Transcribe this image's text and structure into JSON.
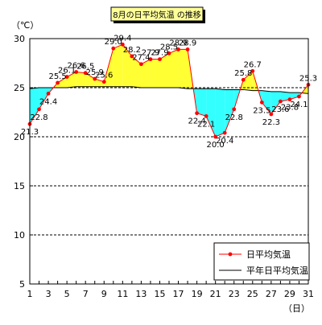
{
  "chart_data": {
    "type": "line",
    "title": "8月の日平均気温 の推移",
    "ylabel_unit": "（℃）",
    "xlabel_unit": "（日）",
    "ylim": [
      5,
      30
    ],
    "yticks": [
      5,
      10,
      15,
      20,
      25,
      30
    ],
    "xlim": [
      1,
      31
    ],
    "xticks": [
      1,
      3,
      5,
      7,
      9,
      11,
      13,
      15,
      17,
      19,
      21,
      23,
      25,
      27,
      29,
      31
    ],
    "grid": "horizontal dashed",
    "legend_position": "bottom-right",
    "colors": {
      "daily_line": "#ff0000",
      "normal_line": "#000000",
      "above_fill": "#ffff33",
      "below_fill": "#33ffff"
    },
    "series": [
      {
        "name": "日平均気温",
        "x": [
          1,
          2,
          3,
          4,
          5,
          6,
          7,
          8,
          9,
          10,
          11,
          12,
          13,
          14,
          15,
          16,
          17,
          18,
          19,
          20,
          21,
          22,
          23,
          24,
          25,
          26,
          27,
          28,
          29,
          30,
          31
        ],
        "values": [
          21.3,
          22.8,
          24.4,
          25.5,
          26.1,
          26.6,
          26.5,
          25.9,
          25.6,
          29.0,
          29.4,
          28.2,
          27.4,
          27.9,
          27.9,
          28.5,
          28.9,
          28.9,
          22.4,
          22.1,
          20.0,
          20.4,
          22.8,
          25.8,
          26.7,
          23.5,
          22.3,
          23.6,
          23.8,
          24.1,
          25.3
        ]
      },
      {
        "name": "平年日平均気温",
        "x": [
          1,
          2,
          3,
          4,
          5,
          6,
          7,
          8,
          9,
          10,
          11,
          12,
          13,
          14,
          15,
          16,
          17,
          18,
          19,
          20,
          21,
          22,
          23,
          24,
          25,
          26,
          27,
          28,
          29,
          30,
          31
        ],
        "values": [
          24.9,
          25.0,
          25.0,
          25.0,
          25.0,
          25.1,
          25.1,
          25.1,
          25.1,
          25.1,
          25.1,
          25.1,
          25.0,
          25.0,
          25.0,
          25.0,
          25.0,
          24.9,
          24.9,
          24.9,
          24.9,
          24.8,
          24.8,
          24.8,
          24.7,
          24.7,
          24.6,
          24.6,
          24.5,
          24.5,
          24.4
        ]
      }
    ],
    "data_labels": [
      "21.3",
      "22.8",
      "24.4",
      "25.5",
      "26.1",
      "26.6",
      "26.5",
      "25.9",
      "25.6",
      "29.0",
      "29.4",
      "28.2",
      "27.4",
      "27.9",
      "27.9",
      "28.5",
      "28.9",
      "28.9",
      "22.4",
      "22.1",
      "20.0",
      "20.4",
      "22.8",
      "25.8",
      "26.7",
      "23.5",
      "22.3",
      "23.6",
      "23.8",
      "24.1",
      "25.3"
    ]
  }
}
